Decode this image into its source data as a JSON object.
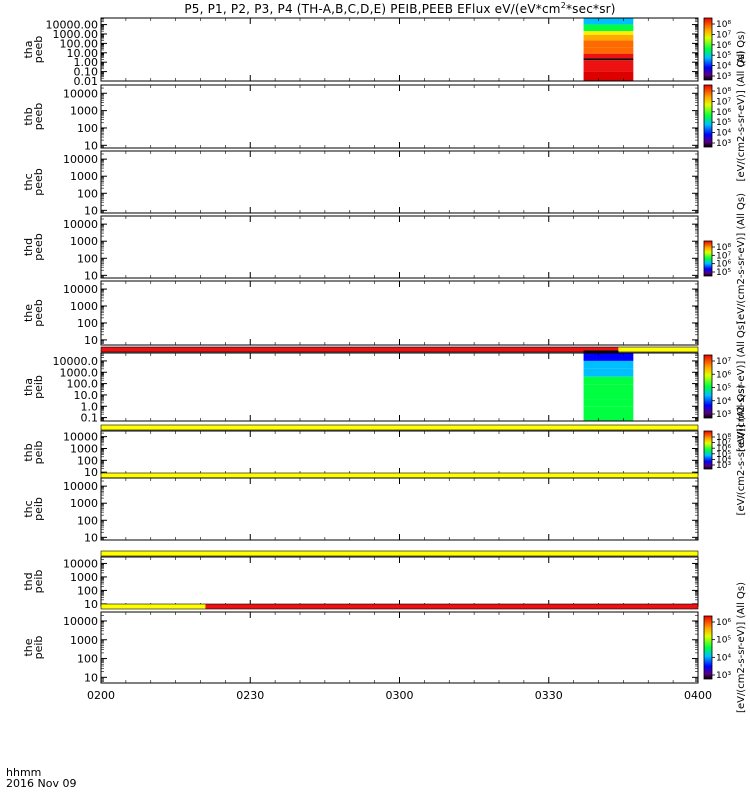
{
  "title": {
    "before_sup": "P5, P1, P2, P3, P4 (TH-A,B,C,D,E) PEIB,PEEB EFlux eV/(eV*cm",
    "sup": "2",
    "after_sup": "*sec*sr)"
  },
  "footer": {
    "time_label": "hhmm",
    "date_label": "2016 Nov 09"
  },
  "x_axis": {
    "range": [
      "0200",
      "0400"
    ],
    "ticks": [
      "0200",
      "0230",
      "0300",
      "0330",
      "0400"
    ],
    "minor_per_major": 6
  },
  "colors": {
    "red": "#ee1111",
    "yellow": "#ffff00",
    "bg": "#ffffff"
  },
  "chart_data": [
    {
      "type": "heatmap",
      "ylabel": [
        "tha",
        "peeb"
      ],
      "y_log": true,
      "ylim": [
        0.01,
        50000
      ],
      "yticks": [
        "10000.00",
        "1000.00",
        "100.00",
        "10.00",
        "1.00",
        "0.10",
        "0.01"
      ],
      "data_window": {
        "start": "0337",
        "end": "0347"
      },
      "bands_top_down": [
        {
          "from": 50000,
          "to": 10000,
          "level": 3
        },
        {
          "from": 10000,
          "to": 2000,
          "level": 4
        },
        {
          "from": 2000,
          "to": 800,
          "level": 7
        },
        {
          "from": 800,
          "to": 200,
          "level": 8
        },
        {
          "from": 200,
          "to": 40,
          "level": 9
        },
        {
          "from": 40,
          "to": 8,
          "level": 9.4
        },
        {
          "from": 8,
          "to": 2.5,
          "level": 9.6
        },
        {
          "from": 2.5,
          "to": 1.6,
          "level": -1
        },
        {
          "from": 1.6,
          "to": 0.1,
          "level": 9.6
        },
        {
          "from": 0.1,
          "to": 0.03,
          "level": 10
        },
        {
          "from": 0.03,
          "to": 0.01,
          "level": 10
        }
      ],
      "colorbar": {
        "labels": [
          "10⁸",
          "10⁷",
          "10⁶",
          "10⁵",
          "10⁴",
          "10³"
        ],
        "unit": "(All Qs)"
      }
    },
    {
      "type": "heatmap",
      "ylabel": [
        "thb",
        "peeb"
      ],
      "y_log": true,
      "ylim": [
        7,
        30000
      ],
      "yticks": [
        "10000",
        "1000",
        "100",
        "10"
      ],
      "colorbar": {
        "labels": [
          "10⁸",
          "10⁷",
          "10⁶",
          "10⁵",
          "10⁴",
          "10³"
        ],
        "unit": "[eV/(cm2-s-sr-eV)] (All Qs)"
      }
    },
    {
      "type": "heatmap",
      "ylabel": [
        "thc",
        "peeb"
      ],
      "y_log": true,
      "ylim": [
        7,
        30000
      ],
      "yticks": [
        "10000",
        "1000",
        "100",
        "10"
      ]
    },
    {
      "type": "heatmap",
      "ylabel": [
        "thd",
        "peeb"
      ],
      "y_log": true,
      "ylim": [
        7,
        30000
      ],
      "yticks": [
        "10000",
        "1000",
        "100",
        "10"
      ],
      "colorbar": {
        "labels": [
          "10⁸",
          "10⁷",
          "10⁶",
          "10⁵"
        ],
        "unit": "[eV/(cm2-s-sr-eV)] (All Qs)"
      }
    },
    {
      "type": "heatmap",
      "ylabel": [
        "the",
        "peeb"
      ],
      "y_log": true,
      "ylim": [
        5,
        30000
      ],
      "yticks": [
        "10000",
        "1000",
        "100",
        "10"
      ]
    },
    {
      "type": "heatmap",
      "ylabel": [
        "tha",
        "peib"
      ],
      "y_log": true,
      "ylim": [
        0.05,
        50000
      ],
      "yticks": [
        "10000.0",
        "1000.0",
        "100.0",
        "10.0",
        "1.0",
        "0.1"
      ],
      "status_bar": [
        {
          "from": "0200",
          "to": "0344",
          "color": "red"
        },
        {
          "from": "0344",
          "to": "0400",
          "color": "yellow"
        }
      ],
      "black_marker": {
        "from": "0337",
        "to": "0344"
      },
      "data_window": {
        "start": "0337",
        "end": "0347"
      },
      "bands_top_down": [
        {
          "from": 50000,
          "to": 10000,
          "level": 2
        },
        {
          "from": 10000,
          "to": 2000,
          "level": 3
        },
        {
          "from": 2000,
          "to": 400,
          "level": 3.6
        },
        {
          "from": 400,
          "to": 80,
          "level": 4
        },
        {
          "from": 80,
          "to": 20,
          "level": 4.4
        },
        {
          "from": 20,
          "to": 4,
          "level": 4.6
        },
        {
          "from": 4,
          "to": 1,
          "level": 4.8
        },
        {
          "from": 1,
          "to": 0.05,
          "level": 5
        }
      ],
      "colorbar": {
        "labels": [
          "10⁷",
          "10⁶",
          "10⁵",
          "10⁴",
          "10³"
        ],
        "unit": "[eV/(cm2-s-sr-eV)] (All Qs)"
      }
    },
    {
      "type": "heatmap",
      "ylabel": [
        "thb",
        "peib"
      ],
      "y_log": true,
      "ylim": [
        7,
        30000
      ],
      "yticks": [
        "10000",
        "1000",
        "100",
        "10"
      ],
      "status_bar": [
        {
          "from": "0200",
          "to": "0400",
          "color": "yellow"
        }
      ],
      "colorbar": {
        "labels": [
          "10⁸",
          "10⁷",
          "10⁶",
          "10⁵",
          "10⁴",
          "10³"
        ],
        "unit": "[eV/(cm2-s-sr-eV)] (All Qs)"
      }
    },
    {
      "type": "heatmap",
      "ylabel": [
        "thc",
        "peib"
      ],
      "y_log": true,
      "ylim": [
        7,
        30000
      ],
      "yticks": [
        "10000",
        "1000",
        "100",
        "10"
      ],
      "status_bar": [
        {
          "from": "0200",
          "to": "0400",
          "color": "yellow"
        }
      ]
    },
    {
      "type": "heatmap",
      "ylabel": [
        "thd",
        "peib"
      ],
      "y_log": true,
      "ylim": [
        7,
        30000
      ],
      "yticks": [
        "10000",
        "1000",
        "100",
        "10"
      ],
      "status_bar": [
        {
          "from": "0200",
          "to": "0400",
          "color": "yellow"
        }
      ],
      "colorbar": {
        "labels": [
          "10⁶",
          "10⁵",
          "10⁴",
          "10³"
        ],
        "unit": "[eV/(cm2-s-sr-eV)] (All Qs)"
      }
    },
    {
      "type": "heatmap",
      "ylabel": [
        "the",
        "peib"
      ],
      "y_log": true,
      "ylim": [
        5,
        30000
      ],
      "yticks": [
        "10000",
        "1000",
        "100",
        "10"
      ],
      "status_bar": [
        {
          "from": "0200",
          "to": "0221",
          "color": "yellow"
        },
        {
          "from": "0221",
          "to": "0400",
          "color": "red"
        }
      ]
    }
  ]
}
